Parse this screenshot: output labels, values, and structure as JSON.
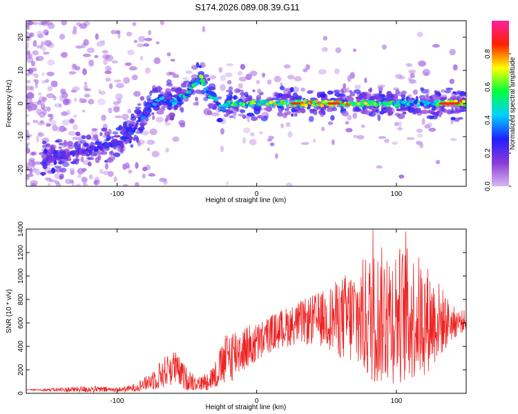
{
  "title": "S174.2026.089.08.39.G11",
  "chart_data": [
    {
      "type": "heatmap",
      "xlabel": "Height of straight line (km)",
      "ylabel": "Frequency (Hz)",
      "xlim": [
        -165,
        150
      ],
      "ylim": [
        -25,
        25
      ],
      "xticks": [
        -100,
        0,
        100
      ],
      "yticks": [
        -20,
        -10,
        0,
        10,
        20
      ],
      "colorbar": {
        "label": "Normalized spectral amplitude",
        "range": [
          0,
          1
        ],
        "ticks": [
          0.0,
          0.2,
          0.4,
          0.6,
          0.8
        ],
        "tick_labels": [
          "0.0",
          "0.2",
          "0.4",
          "0.6",
          "0.8"
        ],
        "colormap": [
          "#d8b8f0",
          "#8a3bd8",
          "#2020ff",
          "#00d0ff",
          "#00ff40",
          "#ffff00",
          "#ff2000",
          "#ff20a0"
        ]
      },
      "ridge": {
        "x": [
          -150,
          -120,
          -100,
          -90,
          -80,
          -70,
          -60,
          -50,
          -40,
          -35,
          -30,
          -25,
          -20,
          -10,
          0,
          20,
          40,
          60,
          80,
          100,
          120,
          150
        ],
        "y": [
          -17,
          -14,
          -12,
          -9,
          -3,
          2,
          0,
          3,
          8,
          3,
          2,
          -2,
          0,
          0,
          0,
          0,
          0,
          0,
          0,
          0,
          0,
          0
        ],
        "amplitude": [
          0.2,
          0.25,
          0.3,
          0.3,
          0.35,
          0.4,
          0.4,
          0.5,
          0.6,
          0.5,
          0.45,
          0.4,
          0.55,
          0.6,
          0.65,
          0.7,
          0.75,
          0.75,
          0.7,
          0.5,
          0.45,
          0.95
        ]
      }
    },
    {
      "type": "line",
      "xlabel": "Height of straight line (km)",
      "ylabel": "SNR (10 * v/v)",
      "xlim": [
        -165,
        150
      ],
      "ylim": [
        0,
        1400
      ],
      "xticks": [
        -100,
        0,
        100
      ],
      "yticks": [
        0,
        200,
        400,
        600,
        800,
        1000,
        1200,
        1400
      ],
      "series": [
        {
          "name": "SNR",
          "color": "#ee2222",
          "x": [
            -165,
            -140,
            -120,
            -100,
            -90,
            -80,
            -70,
            -60,
            -50,
            -40,
            -30,
            -20,
            -10,
            0,
            10,
            20,
            30,
            40,
            50,
            60,
            70,
            80,
            90,
            100,
            110,
            120,
            130,
            140,
            150
          ],
          "y": [
            30,
            30,
            35,
            30,
            40,
            80,
            150,
            230,
            120,
            80,
            150,
            320,
            380,
            420,
            510,
            560,
            600,
            620,
            640,
            640,
            650,
            640,
            660,
            680,
            660,
            640,
            620,
            600,
            620
          ],
          "envelope": [
            0,
            20,
            30,
            20,
            30,
            60,
            120,
            160,
            100,
            60,
            120,
            250,
            200,
            180,
            160,
            170,
            180,
            220,
            250,
            350,
            450,
            550,
            600,
            600,
            580,
            500,
            350,
            150,
            80
          ]
        }
      ]
    }
  ]
}
